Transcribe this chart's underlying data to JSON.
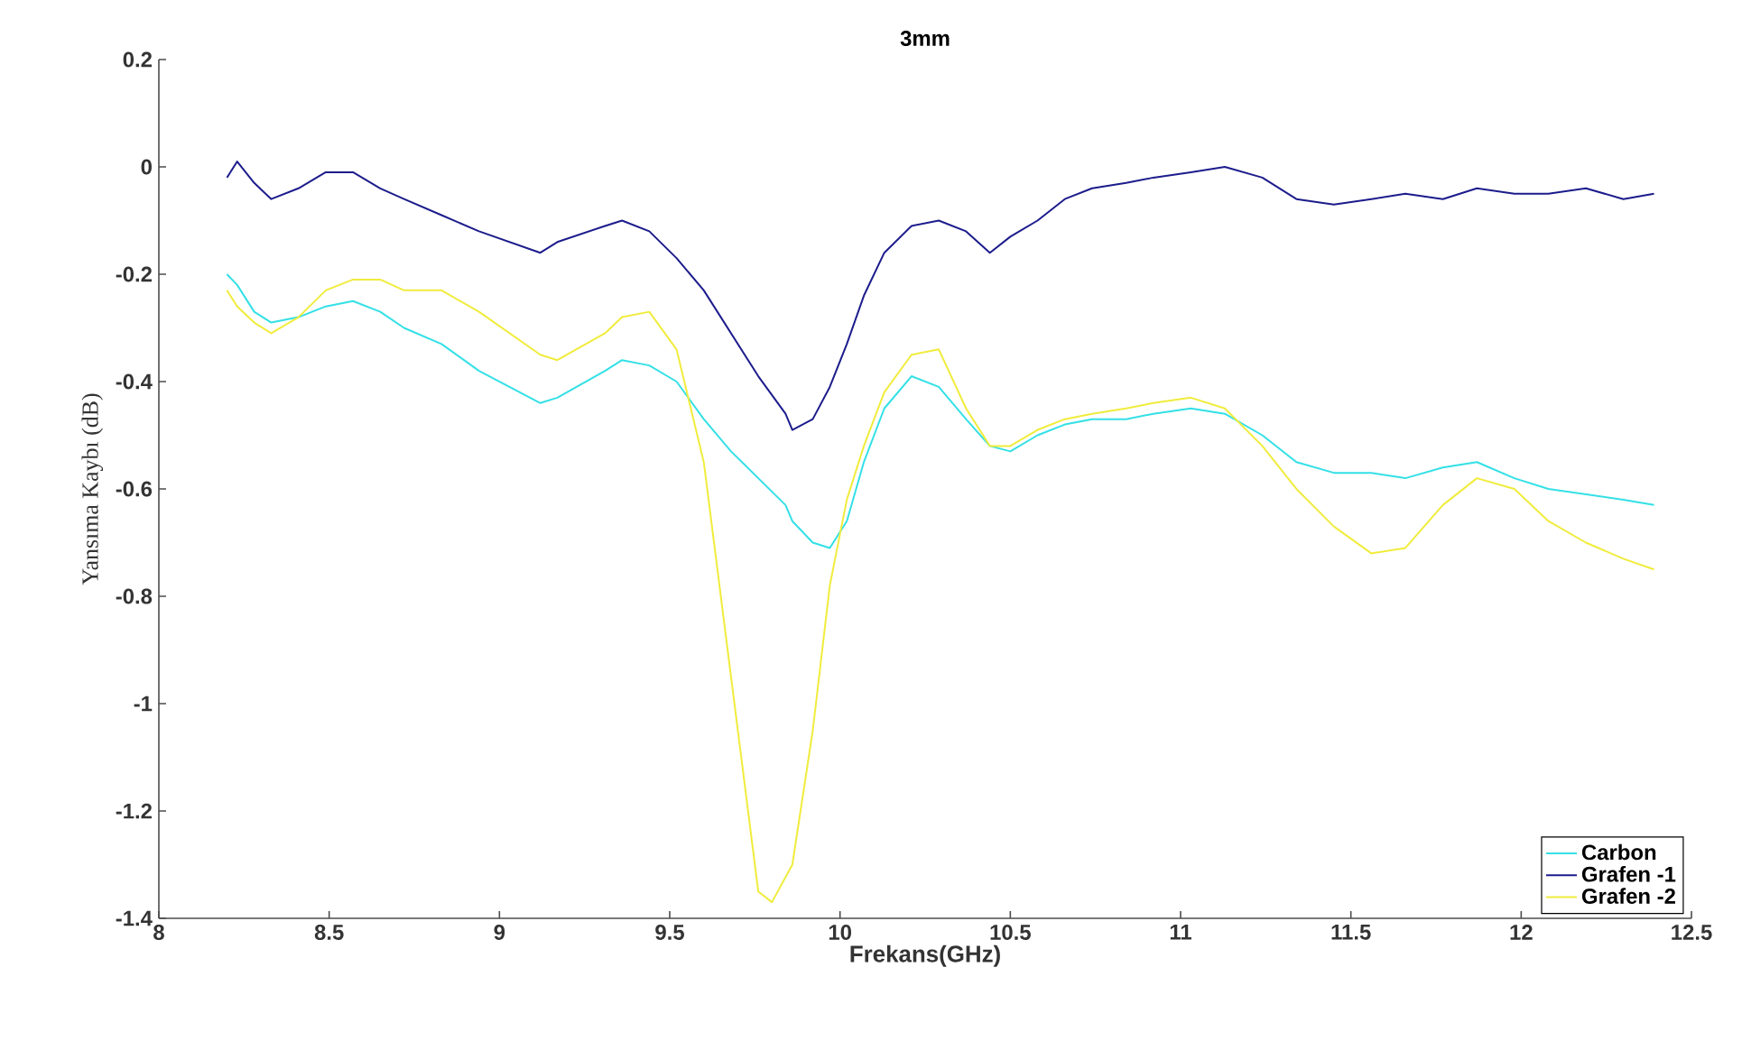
{
  "chart_data": {
    "type": "line",
    "title": "3mm",
    "xlabel": "Frekans(GHz)",
    "ylabel": "Yansıma Kaybı (dB)",
    "xlim": [
      8,
      12.5
    ],
    "ylim": [
      -1.4,
      0.2
    ],
    "xticks": [
      8,
      8.5,
      9,
      9.5,
      10,
      10.5,
      11,
      11.5,
      12,
      12.5
    ],
    "yticks": [
      -1.4,
      -1.2,
      -1,
      -0.8,
      -0.6,
      -0.4,
      -0.2,
      0,
      0.2
    ],
    "grid": false,
    "legend": "bottom right",
    "marker": "none",
    "line_style": "solid",
    "series": [
      {
        "name": "Carbon",
        "color": "#33e0e6",
        "x": [
          8.2,
          8.23,
          8.28,
          8.33,
          8.41,
          8.49,
          8.57,
          8.65,
          8.72,
          8.83,
          8.94,
          9.12,
          9.17,
          9.31,
          9.36,
          9.44,
          9.52,
          9.6,
          9.68,
          9.76,
          9.84,
          9.86,
          9.92,
          9.97,
          10.02,
          10.07,
          10.13,
          10.21,
          10.29,
          10.37,
          10.44,
          10.5,
          10.58,
          10.66,
          10.74,
          10.84,
          10.92,
          11.03,
          11.13,
          11.24,
          11.34,
          11.45,
          11.56,
          11.66,
          11.77,
          11.87,
          11.98,
          12.08,
          12.19,
          12.3,
          12.39
        ],
        "values": [
          -0.2,
          -0.22,
          -0.27,
          -0.29,
          -0.28,
          -0.26,
          -0.25,
          -0.27,
          -0.3,
          -0.33,
          -0.38,
          -0.44,
          -0.43,
          -0.38,
          -0.36,
          -0.37,
          -0.4,
          -0.47,
          -0.53,
          -0.58,
          -0.63,
          -0.66,
          -0.7,
          -0.71,
          -0.66,
          -0.55,
          -0.45,
          -0.39,
          -0.41,
          -0.47,
          -0.52,
          -0.53,
          -0.5,
          -0.48,
          -0.47,
          -0.47,
          -0.46,
          -0.45,
          -0.46,
          -0.5,
          -0.55,
          -0.57,
          -0.57,
          -0.58,
          -0.56,
          -0.55,
          -0.58,
          -0.6,
          -0.61,
          -0.62,
          -0.63
        ]
      },
      {
        "name": "Grafen -1",
        "color": "#1c1c8c",
        "x": [
          8.2,
          8.23,
          8.28,
          8.33,
          8.41,
          8.49,
          8.57,
          8.65,
          8.72,
          8.83,
          8.94,
          9.12,
          9.17,
          9.31,
          9.36,
          9.44,
          9.52,
          9.6,
          9.68,
          9.76,
          9.84,
          9.86,
          9.92,
          9.97,
          10.02,
          10.07,
          10.13,
          10.21,
          10.29,
          10.37,
          10.44,
          10.5,
          10.58,
          10.66,
          10.74,
          10.84,
          10.92,
          11.03,
          11.13,
          11.24,
          11.34,
          11.45,
          11.56,
          11.66,
          11.77,
          11.87,
          11.98,
          12.08,
          12.19,
          12.3,
          12.39
        ],
        "values": [
          -0.02,
          0.01,
          -0.03,
          -0.06,
          -0.04,
          -0.01,
          -0.01,
          -0.04,
          -0.06,
          -0.09,
          -0.12,
          -0.16,
          -0.14,
          -0.11,
          -0.1,
          -0.12,
          -0.17,
          -0.23,
          -0.31,
          -0.39,
          -0.46,
          -0.49,
          -0.47,
          -0.41,
          -0.33,
          -0.24,
          -0.16,
          -0.11,
          -0.1,
          -0.12,
          -0.16,
          -0.13,
          -0.1,
          -0.06,
          -0.04,
          -0.03,
          -0.02,
          -0.01,
          0,
          -0.02,
          -0.06,
          -0.07,
          -0.06,
          -0.05,
          -0.06,
          -0.04,
          -0.05,
          -0.05,
          -0.04,
          -0.06,
          -0.05
        ]
      },
      {
        "name": "Grafen -2",
        "color": "#f0ec3c",
        "x": [
          8.2,
          8.23,
          8.28,
          8.33,
          8.41,
          8.49,
          8.57,
          8.65,
          8.72,
          8.83,
          8.94,
          9.12,
          9.17,
          9.31,
          9.36,
          9.44,
          9.52,
          9.6,
          9.68,
          9.76,
          9.8,
          9.86,
          9.92,
          9.97,
          10.02,
          10.07,
          10.13,
          10.21,
          10.29,
          10.37,
          10.44,
          10.5,
          10.58,
          10.66,
          10.74,
          10.84,
          10.92,
          11.03,
          11.13,
          11.24,
          11.34,
          11.45,
          11.56,
          11.66,
          11.77,
          11.87,
          11.98,
          12.08,
          12.19,
          12.3,
          12.39
        ],
        "values": [
          -0.23,
          -0.26,
          -0.29,
          -0.31,
          -0.28,
          -0.23,
          -0.21,
          -0.21,
          -0.23,
          -0.23,
          -0.27,
          -0.35,
          -0.36,
          -0.31,
          -0.28,
          -0.27,
          -0.34,
          -0.55,
          -0.95,
          -1.35,
          -1.37,
          -1.3,
          -1.05,
          -0.78,
          -0.62,
          -0.52,
          -0.42,
          -0.35,
          -0.34,
          -0.45,
          -0.52,
          -0.52,
          -0.49,
          -0.47,
          -0.46,
          -0.45,
          -0.44,
          -0.43,
          -0.45,
          -0.52,
          -0.6,
          -0.67,
          -0.72,
          -0.71,
          -0.63,
          -0.58,
          -0.6,
          -0.66,
          -0.7,
          -0.73,
          -0.75
        ]
      }
    ]
  }
}
